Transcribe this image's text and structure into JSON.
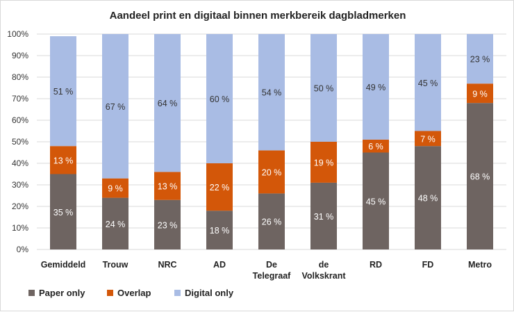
{
  "chart_data": {
    "type": "bar",
    "stacked": true,
    "title": "Aandeel print en digitaal binnen merkbereik dagbladmerken",
    "categories": [
      [
        "Gemiddeld"
      ],
      [
        "Trouw"
      ],
      [
        "NRC"
      ],
      [
        "AD"
      ],
      [
        "De",
        "Telegraaf"
      ],
      [
        "de",
        "Volkskrant"
      ],
      [
        "RD"
      ],
      [
        "FD"
      ],
      [
        "Metro"
      ]
    ],
    "series": [
      {
        "name": "Paper only",
        "color": "#6E6461",
        "values": [
          35,
          24,
          23,
          18,
          26,
          31,
          45,
          48,
          68
        ]
      },
      {
        "name": "Overlap",
        "color": "#D35709",
        "values": [
          13,
          9,
          13,
          22,
          20,
          19,
          6,
          7,
          9
        ]
      },
      {
        "name": "Digital only",
        "color": "#A9BCE4",
        "values": [
          51,
          67,
          64,
          60,
          54,
          50,
          49,
          45,
          23
        ]
      }
    ],
    "yticks": [
      "0%",
      "10%",
      "20%",
      "30%",
      "40%",
      "50%",
      "60%",
      "70%",
      "80%",
      "90%",
      "100%"
    ],
    "ylim": [
      0,
      100
    ],
    "grid": true,
    "legend": "bottom-left",
    "label_suffix": " %"
  }
}
